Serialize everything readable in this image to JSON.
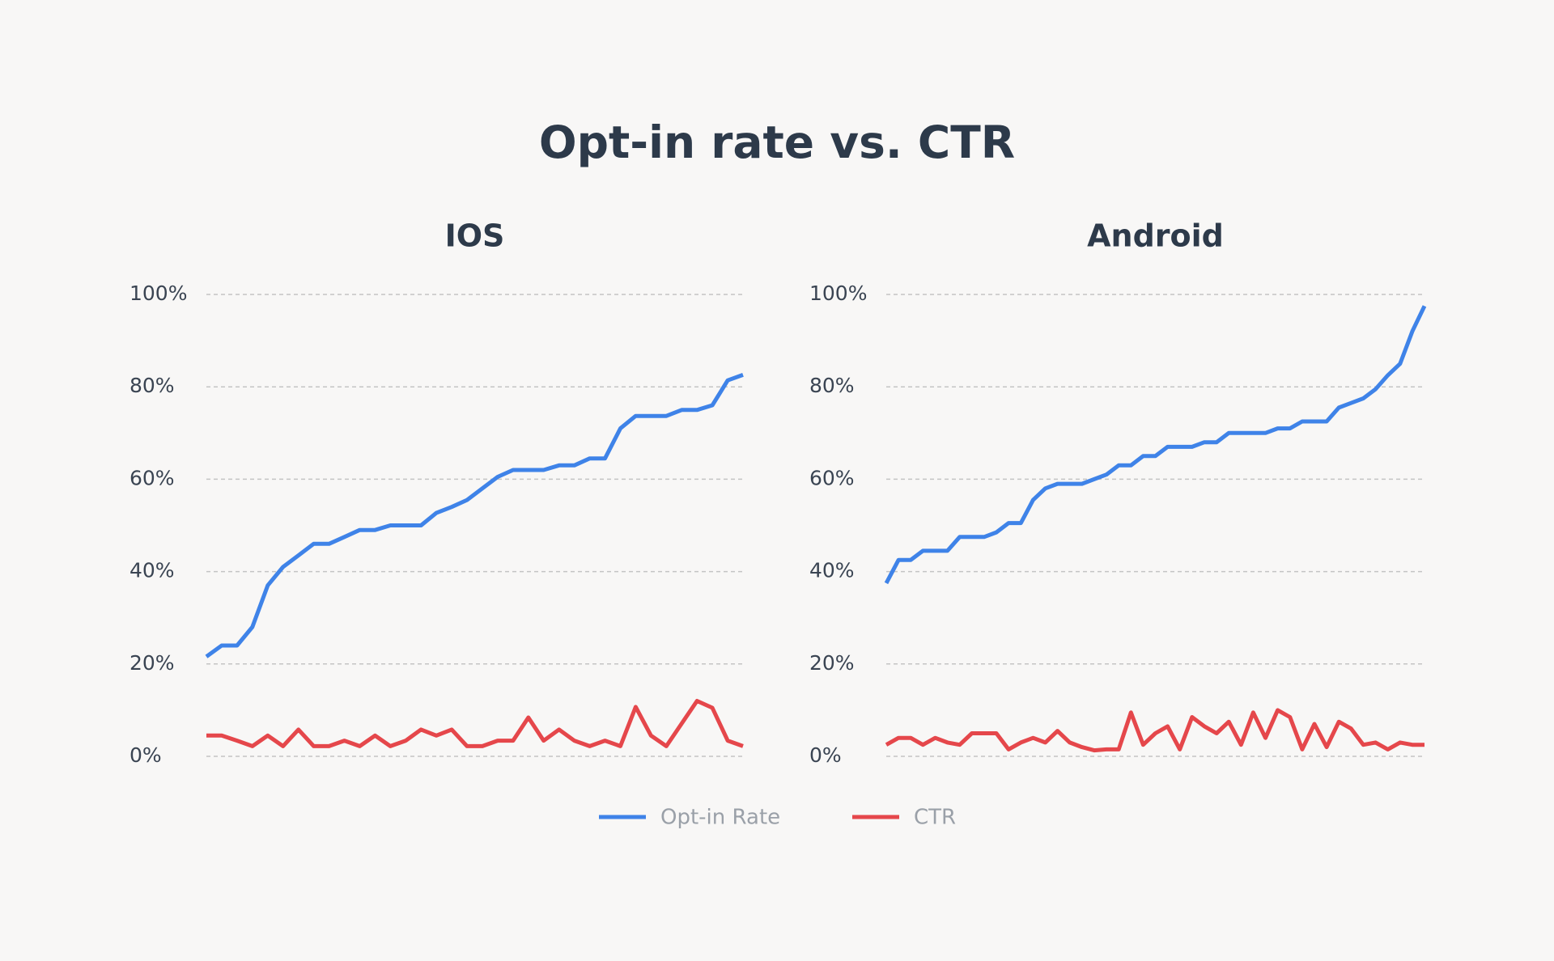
{
  "title": "Opt-in rate vs. CTR",
  "chart_data": [
    {
      "type": "line",
      "title": "IOS",
      "ylim": [
        0,
        100
      ],
      "yticks": [
        {
          "value": 0,
          "label": "0%"
        },
        {
          "value": 20,
          "label": "20%"
        },
        {
          "value": 40,
          "label": "40%"
        },
        {
          "value": 60,
          "label": "60%"
        },
        {
          "value": 80,
          "label": "80%"
        },
        {
          "value": 100,
          "label": "100%"
        }
      ],
      "grid": true,
      "series": [
        {
          "name": "Opt-in Rate",
          "color": "#3f83e8",
          "values": [
            21.6,
            24,
            24,
            28,
            37,
            41,
            43.5,
            46,
            46,
            47.5,
            49,
            49,
            50,
            50,
            50,
            52.7,
            54,
            55.5,
            58,
            60.5,
            62,
            62,
            62,
            63,
            63,
            64.5,
            64.5,
            71,
            73.7,
            73.7,
            73.7,
            75,
            75,
            76,
            81.4,
            82.6
          ]
        },
        {
          "name": "CTR",
          "color": "#e5474b",
          "values": [
            4.5,
            4.5,
            3.4,
            2.2,
            4.5,
            2.2,
            5.8,
            2.2,
            2.2,
            3.4,
            2.2,
            4.5,
            2.2,
            3.4,
            5.8,
            4.5,
            5.8,
            2.2,
            2.2,
            3.4,
            3.4,
            8.4,
            3.4,
            5.8,
            3.4,
            2.2,
            3.4,
            2.2,
            10.7,
            4.5,
            2.2,
            7.1,
            12,
            10.5,
            3.4,
            2.2
          ]
        }
      ]
    },
    {
      "type": "line",
      "title": "Android",
      "ylim": [
        0,
        100
      ],
      "yticks": [
        {
          "value": 0,
          "label": "0%"
        },
        {
          "value": 20,
          "label": "20%"
        },
        {
          "value": 40,
          "label": "40%"
        },
        {
          "value": 60,
          "label": "60%"
        },
        {
          "value": 80,
          "label": "80%"
        },
        {
          "value": 100,
          "label": "100%"
        }
      ],
      "grid": true,
      "series": [
        {
          "name": "Opt-in Rate",
          "color": "#3f83e8",
          "values": [
            37.5,
            42.5,
            42.5,
            44.5,
            44.5,
            44.5,
            47.5,
            47.5,
            47.5,
            48.5,
            50.5,
            50.5,
            55.5,
            58,
            59,
            59,
            59,
            60,
            61,
            63,
            63,
            65,
            65,
            67,
            67,
            67,
            68,
            68,
            70,
            70,
            70,
            70,
            71,
            71,
            72.5,
            72.5,
            72.5,
            75.5,
            76.5,
            77.5,
            79.5,
            82.5,
            85,
            92,
            97.5
          ]
        },
        {
          "name": "CTR",
          "color": "#e5474b",
          "values": [
            2.5,
            4,
            4,
            2.5,
            4,
            3,
            2.5,
            5,
            5,
            5,
            1.5,
            3,
            4,
            3,
            5.5,
            3,
            2,
            1.3,
            1.5,
            1.5,
            9.5,
            2.5,
            5,
            6.5,
            1.5,
            8.5,
            6.5,
            5,
            7.5,
            2.5,
            9.5,
            4,
            10,
            8.5,
            1.5,
            7,
            2,
            7.5,
            6,
            2.5,
            3,
            1.5,
            3,
            2.5,
            2.5
          ]
        }
      ]
    }
  ]
}
